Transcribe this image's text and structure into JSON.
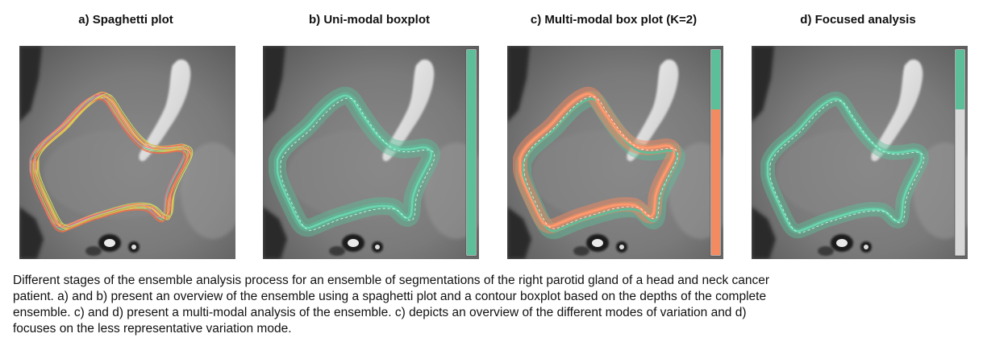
{
  "panels": [
    {
      "title": "a) Spaghetti plot"
    },
    {
      "title": "b) Uni-modal boxplot",
      "bar": [
        {
          "color": "#5dbf9a",
          "fraction": 1.0
        }
      ]
    },
    {
      "title": "c) Multi-modal box plot (K=2)",
      "bar": [
        {
          "color": "#5dbf9a",
          "fraction": 0.29
        },
        {
          "color": "#f28a62",
          "fraction": 0.71
        }
      ]
    },
    {
      "title": "d) Focused analysis",
      "bar": [
        {
          "color": "#5dbf9a",
          "fraction": 0.29
        },
        {
          "color": "#d8d8d8",
          "fraction": 0.71
        }
      ]
    }
  ],
  "caption": {
    "line1": "Different stages of the ensemble analysis process for an ensemble of segmentations of the right parotid gland of a head and neck cancer",
    "line2": "patient. a) and b) present an overview of the ensemble using a spaghetti plot and a contour boxplot based on the depths of the complete",
    "line3": "ensemble. c) and d) present a multi-modal analysis of the ensemble. c) depicts an overview of the different modes of variation and d)",
    "line4": "focuses on the less representative variation mode."
  },
  "colors": {
    "teal": "#5dbf9a",
    "orange": "#f28a62",
    "gray_bar": "#d8d8d8"
  }
}
